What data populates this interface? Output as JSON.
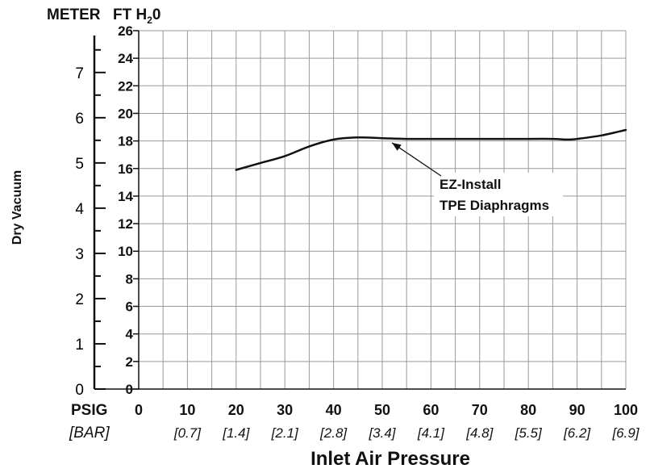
{
  "chart_data": {
    "type": "line",
    "xlabel": "Inlet Air Pressure",
    "ylabel": "Dry Vacuum",
    "left_axis_unit": "METER",
    "ft_axis_unit": "FT H",
    "ft_axis_unit_sub": "2",
    "ft_axis_unit_tail": "0",
    "x_unit_label": "PSIG",
    "bar_unit_label": "[BAR]",
    "xlim": [
      0,
      100
    ],
    "ylim": [
      0,
      26
    ],
    "x_ticks": [
      "0",
      "10",
      "20",
      "30",
      "40",
      "50",
      "60",
      "70",
      "80",
      "90",
      "100"
    ],
    "bar_ticks": [
      "",
      "[0.7]",
      "[1.4]",
      "[2.1]",
      "[2.8]",
      "[3.4]",
      "[4.1]",
      "[4.8]",
      "[5.5]",
      "[6.2]",
      "[6.9]"
    ],
    "y_ticks_ft": [
      "0",
      "2",
      "4",
      "6",
      "8",
      "10",
      "12",
      "14",
      "16",
      "18",
      "20",
      "22",
      "24",
      "26"
    ],
    "y_ticks_meter": [
      "0",
      "1",
      "2",
      "3",
      "4",
      "5",
      "6",
      "7"
    ],
    "grid": true,
    "series": [
      {
        "x": [
          20,
          25,
          30,
          35,
          40,
          45,
          50,
          55,
          60,
          70,
          80,
          85,
          88,
          90,
          95,
          100
        ],
        "y": [
          15.9,
          16.4,
          16.9,
          17.6,
          18.1,
          18.25,
          18.2,
          18.15,
          18.15,
          18.15,
          18.15,
          18.15,
          18.1,
          18.15,
          18.4,
          18.8
        ]
      }
    ],
    "annotation": {
      "lines": [
        "EZ-Install",
        "TPE Diaphragms"
      ],
      "arrow_to": [
        52,
        18.1
      ]
    }
  }
}
